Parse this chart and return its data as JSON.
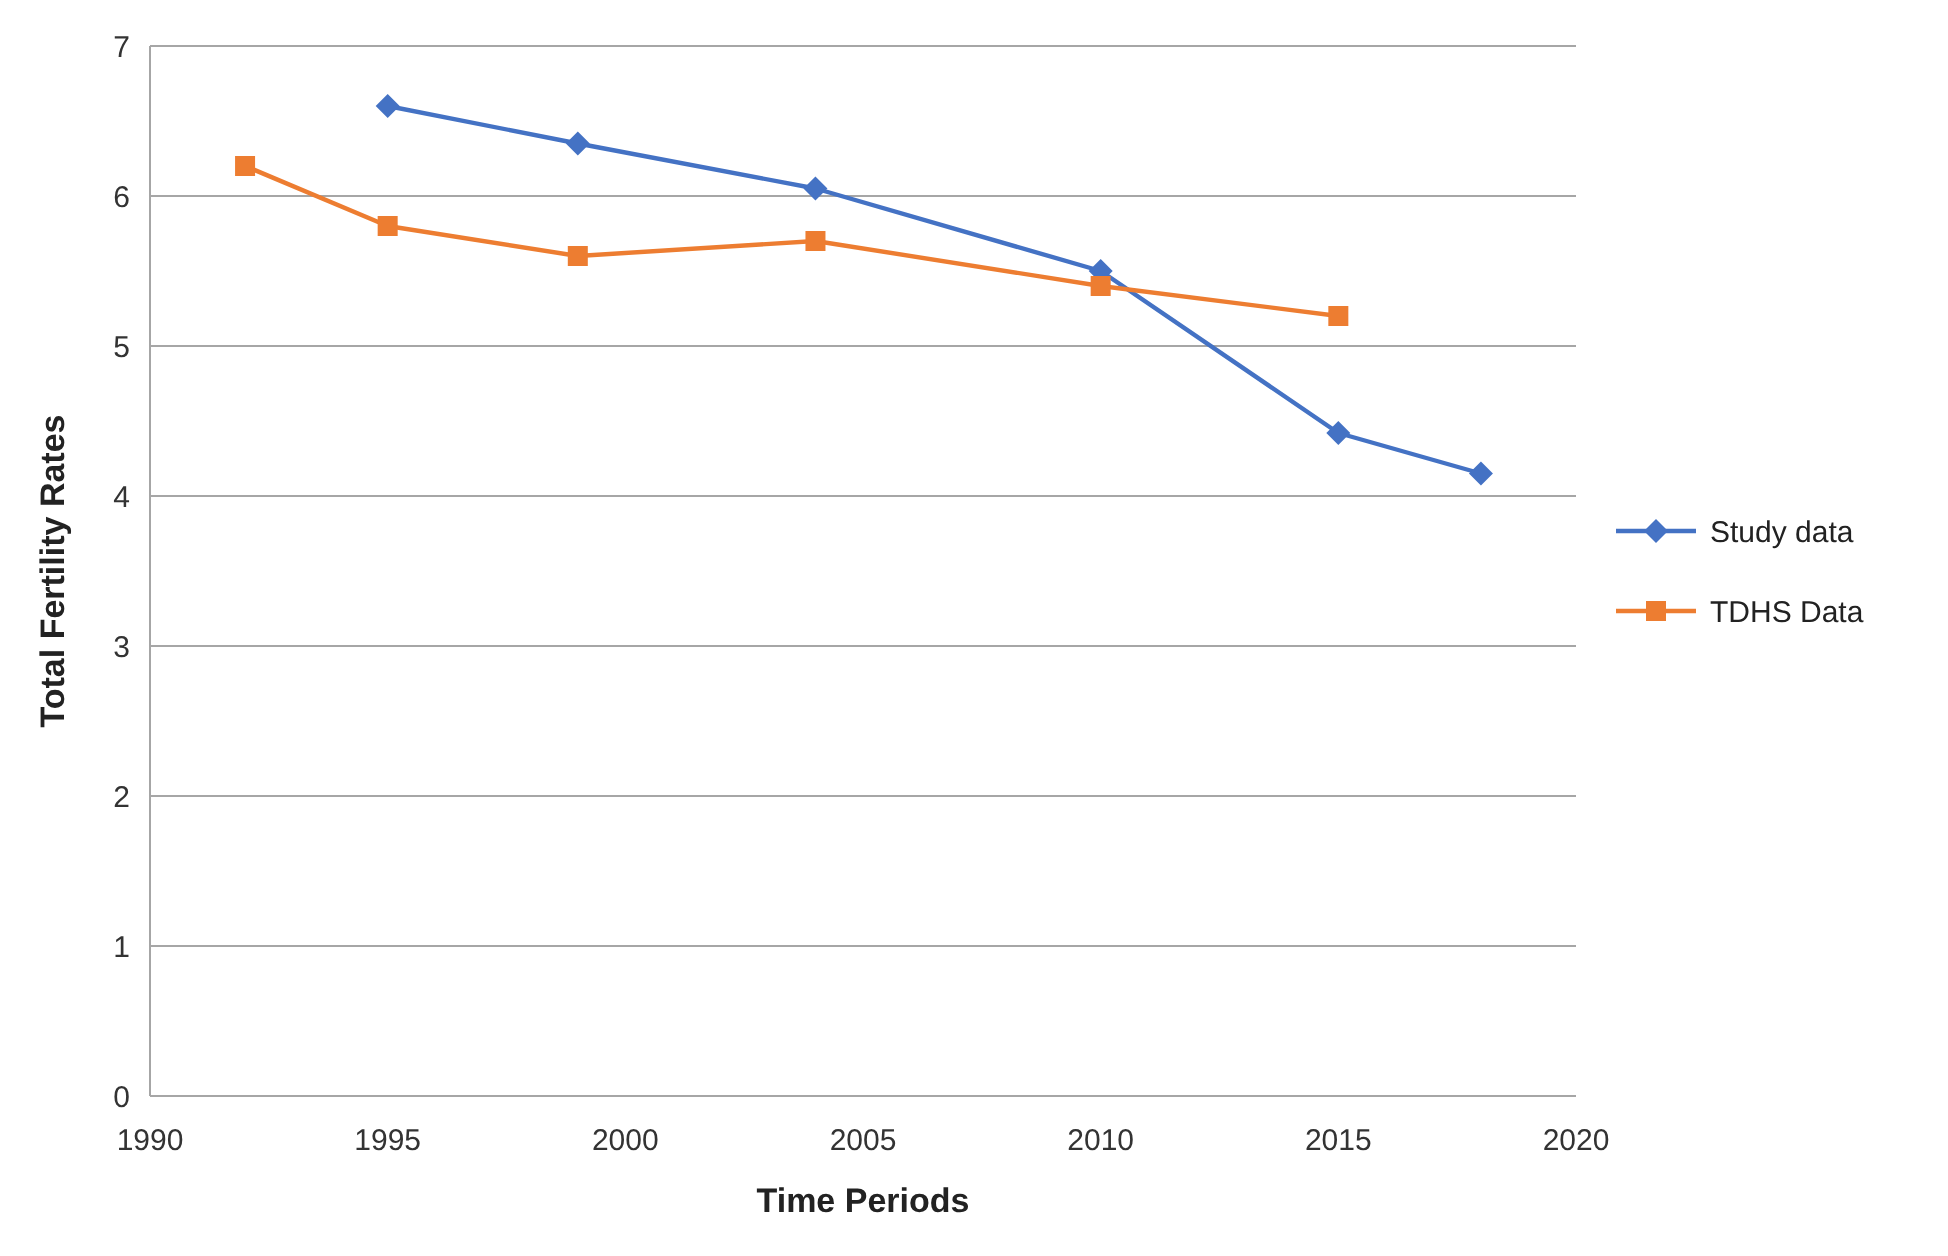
{
  "chart_data": {
    "type": "line",
    "xlabel": "Time Periods",
    "ylabel": "Total Fertility Rates",
    "xlim": [
      1990,
      2020
    ],
    "xticks": [
      1990,
      1995,
      2000,
      2005,
      2010,
      2015,
      2020
    ],
    "ylim": [
      0,
      7
    ],
    "yticks": [
      0,
      1,
      2,
      3,
      4,
      5,
      6,
      7
    ],
    "grid": "y",
    "legend": "right",
    "series": [
      {
        "name": "Study data",
        "color": "#4472c4",
        "marker": "diamond",
        "x": [
          1995,
          1999,
          2004,
          2010,
          2015,
          2018
        ],
        "values": [
          6.6,
          6.35,
          6.05,
          5.5,
          4.42,
          4.15
        ]
      },
      {
        "name": "TDHS Data",
        "color": "#ed7d31",
        "marker": "square",
        "x": [
          1992,
          1995,
          1999,
          2004,
          2010,
          2015
        ],
        "values": [
          6.2,
          5.8,
          5.6,
          5.7,
          5.4,
          5.2
        ]
      }
    ]
  }
}
